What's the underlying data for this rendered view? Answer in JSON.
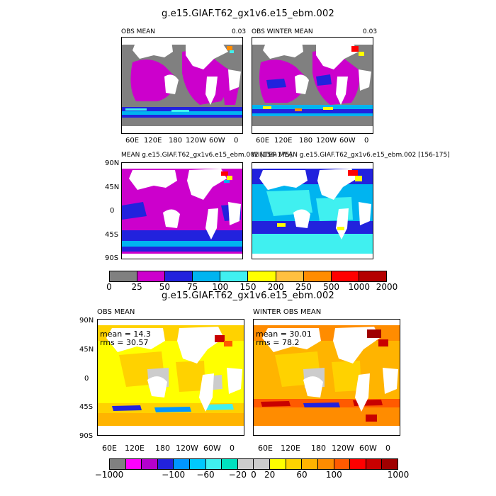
{
  "figure1": {
    "title": "g.e15.GIAF.T62_gx1v6.e15_ebm.002",
    "panels": [
      {
        "left": "OBS MEAN",
        "right": "0.03"
      },
      {
        "left": "OBS WINTER MEAN",
        "right": "0.03"
      },
      {
        "left": "MEAN g.e15.GIAF.T62_gx1v6.e15_ebm.002 [156-175]",
        "right": ""
      },
      {
        "left": "WINTER MEAN g.e15.GIAF.T62_gx1v6.e15_ebm.002 [156-175]",
        "right": ""
      }
    ],
    "lat_ticks": [
      "90N",
      "45N",
      "0",
      "45S",
      "90S"
    ],
    "lon_ticks": [
      "60E",
      "120E",
      "180",
      "120W",
      "60W",
      "0"
    ],
    "colorbar_labels": [
      "0",
      "25",
      "50",
      "75",
      "100",
      "150",
      "200",
      "250",
      "500",
      "1000",
      "2000"
    ],
    "colorbar_colors": [
      "#808080",
      "#cc00cc",
      "#2222dd",
      "#00b4f0",
      "#40f0f0",
      "#ffff00",
      "#ffc040",
      "#ff8c00",
      "#ff0000",
      "#b40000"
    ]
  },
  "figure2": {
    "title": "g.e15.GIAF.T62_gx1v6.e15_ebm.002",
    "panels": [
      {
        "left": "OBS MEAN",
        "mean": "mean = 14.3",
        "rms": "rms = 30.57"
      },
      {
        "left": "WINTER OBS MEAN",
        "mean": "mean = 30.01",
        "rms": "rms = 78.2"
      }
    ],
    "lat_ticks": [
      "90N",
      "45N",
      "0",
      "45S",
      "90S"
    ],
    "lon_ticks": [
      "60E",
      "120E",
      "180",
      "120W",
      "60W",
      "0"
    ],
    "colorbar_labels": [
      "−1000",
      "−100",
      "−60",
      "−20",
      "0",
      "20",
      "60",
      "100",
      "1000"
    ],
    "colorbar_colors": [
      "#808080",
      "#ff00ff",
      "#b400cc",
      "#2222dd",
      "#0096ff",
      "#00c8ff",
      "#40f0f0",
      "#00e0c0",
      "#cccccc",
      "#cccccc",
      "#ffff00",
      "#ffd200",
      "#ffb400",
      "#ff8c00",
      "#ff5a00",
      "#ff0000",
      "#c80000",
      "#a00000"
    ]
  },
  "chart_data": [
    {
      "type": "heatmap",
      "title": "OBS MEAN",
      "xlabel": "",
      "ylabel": "",
      "x_ticks": [
        "60E",
        "120E",
        "180",
        "120W",
        "60W",
        "0"
      ],
      "y_ticks": [],
      "legend": "shared colorbar below"
    },
    {
      "type": "heatmap",
      "title": "OBS WINTER MEAN",
      "xlabel": "",
      "ylabel": "",
      "x_ticks": [
        "60E",
        "120E",
        "180",
        "120W",
        "60W",
        "0"
      ],
      "y_ticks": [],
      "legend": "shared colorbar below"
    },
    {
      "type": "heatmap",
      "title": "MEAN g.e15.GIAF.T62_gx1v6.e15_ebm.002 [156-175]",
      "xlabel": "",
      "ylabel": "",
      "y_ticks": [
        "90N",
        "45N",
        "0",
        "45S",
        "90S"
      ],
      "colorbar": [
        0,
        25,
        50,
        75,
        100,
        150,
        200,
        250,
        500,
        1000,
        2000
      ]
    },
    {
      "type": "heatmap",
      "title": "WINTER MEAN g.e15.GIAF.T62_gx1v6.e15_ebm.002 [156-175]",
      "xlabel": "",
      "ylabel": "",
      "y_ticks": [],
      "colorbar": [
        0,
        25,
        50,
        75,
        100,
        150,
        200,
        250,
        500,
        1000,
        2000
      ]
    },
    {
      "type": "heatmap",
      "title": "OBS MEAN",
      "stats": {
        "mean": 14.3,
        "rms": 30.57
      },
      "x_ticks": [
        "60E",
        "120E",
        "180",
        "120W",
        "60W",
        "0"
      ],
      "y_ticks": [
        "90N",
        "45N",
        "0",
        "45S",
        "90S"
      ],
      "colorbar": [
        -1000,
        -100,
        -60,
        -20,
        0,
        20,
        60,
        100,
        1000
      ]
    },
    {
      "type": "heatmap",
      "title": "WINTER OBS MEAN",
      "stats": {
        "mean": 30.01,
        "rms": 78.2
      },
      "x_ticks": [
        "60E",
        "120E",
        "180",
        "120W",
        "60W",
        "0"
      ],
      "y_ticks": [],
      "colorbar": [
        -1000,
        -100,
        -60,
        -20,
        0,
        20,
        60,
        100,
        1000
      ]
    }
  ]
}
